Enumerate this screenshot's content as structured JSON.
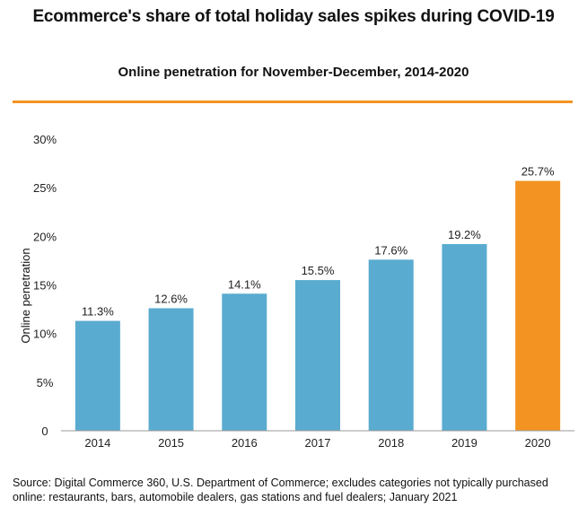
{
  "colors": {
    "bar": "#5aabd0",
    "highlight": "#f39321",
    "rule": "#f39321",
    "axis": "#999999"
  },
  "chart_data": {
    "type": "bar",
    "title": "Ecommerce's share of total holiday sales spikes during COVID-19",
    "subtitle": "Online penetration for November-December, 2014-2020",
    "xlabel": "",
    "ylabel": "Online penetration",
    "ylim": [
      0,
      30
    ],
    "yticks": [
      0,
      5,
      10,
      15,
      20,
      25,
      30
    ],
    "ytick_labels": [
      "0",
      "5%",
      "10%",
      "15%",
      "20%",
      "25%",
      "30%"
    ],
    "categories": [
      "2014",
      "2015",
      "2016",
      "2017",
      "2018",
      "2019",
      "2020"
    ],
    "values": [
      11.3,
      12.6,
      14.1,
      15.5,
      17.6,
      19.2,
      25.7
    ],
    "data_labels": [
      "11.3%",
      "12.6%",
      "14.1%",
      "15.5%",
      "17.6%",
      "19.2%",
      "25.7%"
    ],
    "highlight_index": 6,
    "grid": false,
    "source": "Source: Digital Commerce 360, U.S. Department of Commerce; excludes categories not typically purchased online: restaurants, bars, automobile dealers, gas stations and fuel dealers; January 2021"
  }
}
